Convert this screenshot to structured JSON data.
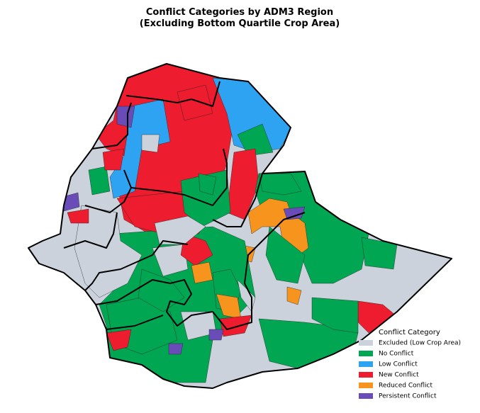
{
  "title": "Conflict Categories by ADM3 Region",
  "subtitle": "(Excluding Bottom Quartile Crop Area)",
  "legend": {
    "title": "Conflict Category",
    "items": [
      {
        "label": "Excluded (Low Crop Area)",
        "color": "#cbd2dc"
      },
      {
        "label": "No Conflict",
        "color": "#00a651"
      },
      {
        "label": "Low Conflict",
        "color": "#2ea3f2"
      },
      {
        "label": "New Conflict",
        "color": "#ed1c2e"
      },
      {
        "label": "Reduced Conflict",
        "color": "#f7941d"
      },
      {
        "label": "Persistent Conflict",
        "color": "#6a4cb8"
      }
    ]
  }
}
